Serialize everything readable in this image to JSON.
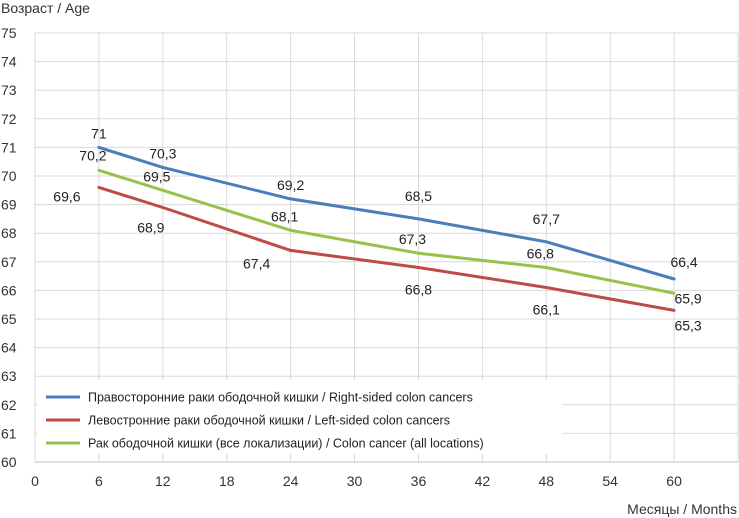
{
  "chart_data": {
    "type": "line",
    "title": "",
    "ylabel": "Возраст / Age",
    "xlabel": "Месяцы / Months",
    "x_ticks": [
      0,
      6,
      12,
      18,
      24,
      30,
      36,
      42,
      48,
      54,
      60
    ],
    "y_ticks": [
      60,
      61,
      62,
      63,
      64,
      65,
      66,
      67,
      68,
      69,
      70,
      71,
      72,
      73,
      74,
      75
    ],
    "xlim": [
      0,
      66
    ],
    "ylim": [
      60,
      75
    ],
    "grid": true,
    "legend_position": "bottom-left",
    "series": [
      {
        "name": "Правосторонние раки ободочной кишки / Right-sided colon cancers",
        "color": "#4a7ebb",
        "points": [
          {
            "x": 6,
            "y": 71,
            "label": "71"
          },
          {
            "x": 12,
            "y": 70.3,
            "label": "70,3"
          },
          {
            "x": 24,
            "y": 69.2,
            "label": "69,2"
          },
          {
            "x": 36,
            "y": 68.5,
            "label": "68,5"
          },
          {
            "x": 48,
            "y": 67.7,
            "label": "67,7"
          },
          {
            "x": 60,
            "y": 66.4,
            "label": "66,4"
          }
        ]
      },
      {
        "name": "Левостронние раки ободочной кишки / Left-sided colon cancers",
        "color": "#be4b48",
        "points": [
          {
            "x": 6,
            "y": 69.6,
            "label": "69,6"
          },
          {
            "x": 12,
            "y": 68.9,
            "label": "68,9"
          },
          {
            "x": 24,
            "y": 67.4,
            "label": "67,4"
          },
          {
            "x": 36,
            "y": 66.8,
            "label": "66,8"
          },
          {
            "x": 48,
            "y": 66.1,
            "label": "66,1"
          },
          {
            "x": 60,
            "y": 65.3,
            "label": "65,3"
          }
        ]
      },
      {
        "name": "Рак ободочной кишки (все локализации) / Colon cancer (all locations)",
        "color": "#98c149",
        "points": [
          {
            "x": 6,
            "y": 70.2,
            "label": "70,2"
          },
          {
            "x": 12,
            "y": 69.5,
            "label": "69,5"
          },
          {
            "x": 24,
            "y": 68.1,
            "label": "68,1"
          },
          {
            "x": 36,
            "y": 67.3,
            "label": "67,3"
          },
          {
            "x": 48,
            "y": 66.8,
            "label": "66,8"
          },
          {
            "x": 60,
            "y": 65.9,
            "label": "65,9"
          }
        ]
      }
    ]
  }
}
